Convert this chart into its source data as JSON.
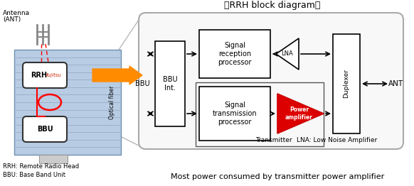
{
  "title": "《RRH block diagram》",
  "bg_color": "#ffffff",
  "bbu_label": "BBU",
  "bbu_int_label": "BBU\nInt.",
  "ant_label": "ANT",
  "duplexer_label": "Duplexer",
  "lna_note": "LNA: Low Noise Amplifier",
  "transmitter_label": "Transmitter",
  "most_power_text": "Most power consumed by transmitter power amplifier",
  "rrh_legend": "RRH: Remote Radio Head",
  "bbu_legend": "BBU: Base Band Unit",
  "signal_rx_label": "Signal\nreception\nprocessor",
  "signal_tx_label": "Signal\ntransmission\nprocessor",
  "lna_label": "LNA",
  "power_amp_label": "Power\namplifier",
  "optical_fiber_label": "Optical fiber",
  "antenna_label_1": "Antenna",
  "antenna_label_2": "(ANT)",
  "rrh_box_label": "RRH",
  "fujitsu_label": "fujitsu",
  "bbu_box_label": "BBU"
}
